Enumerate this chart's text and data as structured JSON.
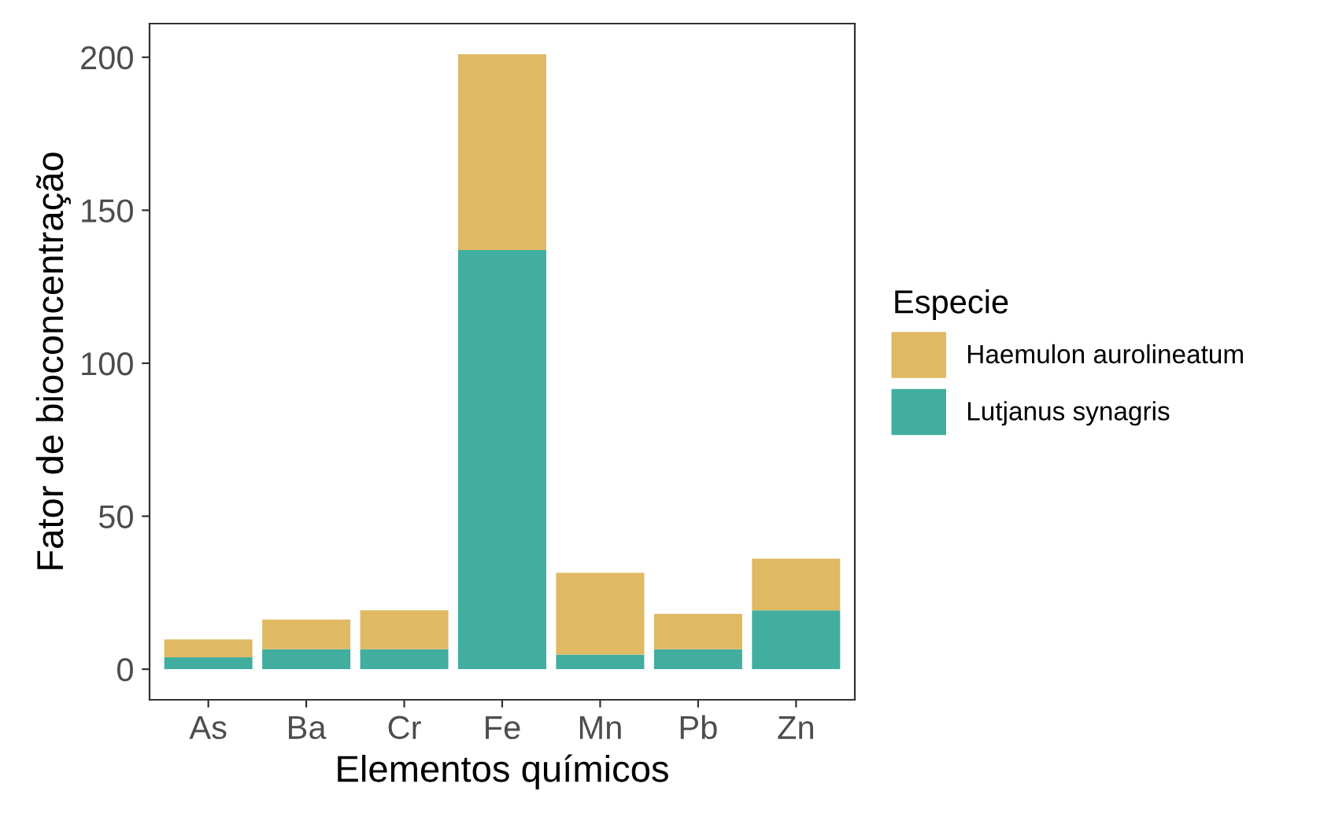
{
  "chart_data": {
    "type": "bar",
    "stacked": true,
    "xlabel": "Elementos químicos",
    "ylabel": "Fator de bioconcentração",
    "legend_title": "Especie",
    "legend": "right",
    "categories": [
      "As",
      "Ba",
      "Cr",
      "Fe",
      "Mn",
      "Pb",
      "Zn"
    ],
    "series": [
      {
        "name": "Lutjanus synagris",
        "color": "#41ae9f",
        "values": [
          3.9,
          6.5,
          6.5,
          137,
          4.8,
          6.5,
          19.2
        ]
      },
      {
        "name": "Haemulon aurolineatum",
        "color": "#dfb963",
        "values": [
          5.8,
          9.7,
          12.7,
          64,
          26.7,
          11.6,
          16.9
        ]
      }
    ],
    "ylim": [
      -10,
      211
    ],
    "yticks": [
      0,
      50,
      100,
      150,
      200
    ],
    "grid": false
  }
}
